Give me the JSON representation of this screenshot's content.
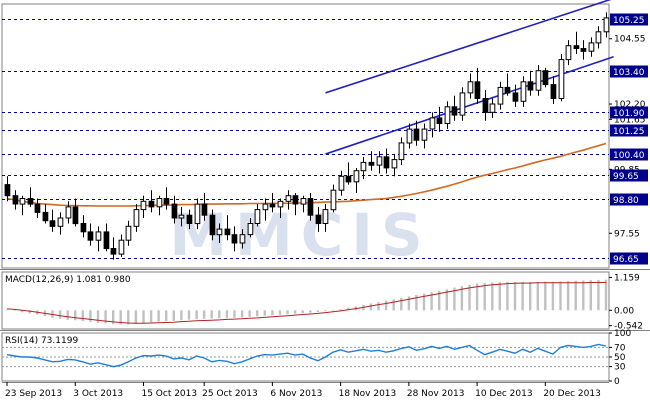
{
  "chart_data": [
    {
      "type": "candlestick",
      "panel": "price",
      "ylim": [
        96.3,
        105.8
      ],
      "y_ticks": [
        {
          "value": "104.55",
          "label": "104.55"
        },
        {
          "value": "102.20",
          "label": "102.20"
        },
        {
          "value": "101.65",
          "label": "101.65"
        },
        {
          "value": "99.85",
          "label": "99.85"
        },
        {
          "value": "97.55",
          "label": "97.55"
        }
      ],
      "levels": [
        {
          "value": 105.25,
          "label": "105.25"
        },
        {
          "value": 103.4,
          "label": "103.40"
        },
        {
          "value": 101.9,
          "label": "101.90"
        },
        {
          "value": 101.25,
          "label": "101.25"
        },
        {
          "value": 100.4,
          "label": "100.40"
        },
        {
          "value": 99.65,
          "label": "99.65"
        },
        {
          "value": 98.8,
          "label": "98.80"
        },
        {
          "value": 96.65,
          "label": "96.65"
        }
      ],
      "ohlc": [
        [
          99.3,
          99.6,
          98.7,
          98.9
        ],
        [
          98.9,
          99.1,
          98.4,
          98.6
        ],
        [
          98.6,
          98.9,
          98.2,
          98.8
        ],
        [
          98.8,
          99.2,
          98.5,
          98.6
        ],
        [
          98.6,
          98.8,
          98.1,
          98.3
        ],
        [
          98.3,
          98.6,
          97.9,
          98.0
        ],
        [
          98.0,
          98.4,
          97.6,
          97.8
        ],
        [
          97.8,
          98.3,
          97.5,
          98.1
        ],
        [
          98.1,
          98.7,
          97.9,
          98.5
        ],
        [
          98.5,
          98.8,
          97.8,
          97.9
        ],
        [
          97.9,
          98.2,
          97.4,
          97.6
        ],
        [
          97.6,
          97.9,
          97.1,
          97.3
        ],
        [
          97.3,
          97.8,
          96.9,
          97.6
        ],
        [
          97.6,
          97.9,
          96.9,
          97.0
        ],
        [
          97.0,
          97.4,
          96.6,
          96.8
        ],
        [
          96.8,
          97.5,
          96.7,
          97.3
        ],
        [
          97.3,
          98.0,
          97.1,
          97.8
        ],
        [
          97.8,
          98.6,
          97.6,
          98.4
        ],
        [
          98.4,
          98.9,
          98.1,
          98.7
        ],
        [
          98.7,
          99.1,
          98.3,
          98.5
        ],
        [
          98.5,
          98.9,
          98.2,
          98.8
        ],
        [
          98.8,
          99.2,
          98.4,
          98.6
        ],
        [
          98.6,
          98.9,
          97.9,
          98.1
        ],
        [
          98.1,
          98.5,
          97.8,
          98.2
        ],
        [
          98.2,
          98.4,
          97.7,
          97.9
        ],
        [
          97.9,
          98.8,
          97.7,
          98.6
        ],
        [
          98.6,
          99.0,
          98.0,
          98.2
        ],
        [
          98.2,
          98.4,
          97.3,
          97.5
        ],
        [
          97.5,
          97.9,
          97.2,
          97.7
        ],
        [
          97.7,
          98.2,
          97.3,
          97.5
        ],
        [
          97.5,
          97.8,
          96.9,
          97.2
        ],
        [
          97.2,
          97.7,
          97.0,
          97.5
        ],
        [
          97.5,
          98.1,
          97.4,
          97.9
        ],
        [
          97.9,
          98.6,
          97.8,
          98.4
        ],
        [
          98.4,
          98.8,
          98.0,
          98.6
        ],
        [
          98.6,
          99.0,
          98.3,
          98.5
        ],
        [
          98.5,
          98.8,
          98.1,
          98.7
        ],
        [
          98.7,
          99.1,
          98.4,
          98.9
        ],
        [
          98.9,
          99.0,
          98.2,
          98.6
        ],
        [
          98.6,
          98.9,
          98.3,
          98.8
        ],
        [
          98.8,
          99.0,
          98.0,
          98.2
        ],
        [
          98.2,
          98.5,
          97.6,
          97.9
        ],
        [
          97.9,
          98.6,
          97.6,
          98.4
        ],
        [
          98.4,
          99.3,
          98.3,
          99.1
        ],
        [
          99.1,
          99.8,
          98.9,
          99.6
        ],
        [
          99.6,
          100.1,
          99.3,
          99.4
        ],
        [
          99.4,
          99.9,
          99.0,
          99.8
        ],
        [
          99.8,
          100.3,
          99.5,
          100.1
        ],
        [
          100.1,
          100.5,
          99.8,
          100.0
        ],
        [
          100.0,
          100.5,
          99.7,
          100.3
        ],
        [
          100.3,
          100.6,
          99.7,
          99.9
        ],
        [
          99.9,
          100.4,
          99.6,
          100.2
        ],
        [
          100.2,
          101.0,
          100.0,
          100.8
        ],
        [
          100.8,
          101.5,
          100.6,
          101.3
        ],
        [
          101.3,
          101.6,
          100.7,
          100.9
        ],
        [
          100.9,
          101.5,
          100.6,
          101.3
        ],
        [
          101.3,
          101.9,
          101.0,
          101.7
        ],
        [
          101.7,
          102.1,
          101.2,
          101.5
        ],
        [
          101.5,
          102.3,
          101.3,
          102.1
        ],
        [
          102.1,
          102.5,
          101.6,
          101.8
        ],
        [
          101.8,
          102.8,
          101.6,
          102.6
        ],
        [
          102.6,
          103.3,
          102.4,
          103.0
        ],
        [
          103.0,
          103.5,
          102.2,
          102.4
        ],
        [
          102.4,
          102.7,
          101.6,
          101.9
        ],
        [
          101.9,
          102.4,
          101.7,
          102.2
        ],
        [
          102.2,
          103.0,
          102.0,
          102.8
        ],
        [
          102.8,
          103.3,
          102.5,
          102.6
        ],
        [
          102.6,
          102.9,
          102.1,
          102.3
        ],
        [
          102.3,
          103.2,
          102.1,
          103.0
        ],
        [
          103.0,
          103.4,
          102.5,
          102.7
        ],
        [
          102.7,
          103.6,
          102.5,
          103.4
        ],
        [
          103.4,
          103.5,
          102.8,
          102.9
        ],
        [
          102.9,
          103.2,
          102.2,
          102.4
        ],
        [
          102.4,
          104.0,
          102.3,
          103.8
        ],
        [
          103.8,
          104.5,
          103.6,
          104.3
        ],
        [
          104.3,
          104.8,
          104.0,
          104.2
        ],
        [
          104.2,
          104.5,
          103.8,
          104.1
        ],
        [
          104.1,
          104.6,
          103.9,
          104.4
        ],
        [
          104.4,
          105.0,
          104.2,
          104.8
        ],
        [
          104.8,
          105.5,
          104.6,
          105.3
        ]
      ],
      "ma": [
        98.8,
        98.75,
        98.7,
        98.66,
        98.62,
        98.6,
        98.58,
        98.56,
        98.55,
        98.55,
        98.54,
        98.54,
        98.53,
        98.53,
        98.53,
        98.53,
        98.53,
        98.54,
        98.55,
        98.55,
        98.56,
        98.56,
        98.57,
        98.58,
        98.58,
        98.59,
        98.6,
        98.6,
        98.6,
        98.61,
        98.61,
        98.61,
        98.62,
        98.62,
        98.62,
        98.63,
        98.63,
        98.63,
        98.64,
        98.64,
        98.65,
        98.66,
        98.67,
        98.68,
        98.69,
        98.7,
        98.72,
        98.74,
        98.76,
        98.78,
        98.8,
        98.84,
        98.88,
        98.93,
        98.98,
        99.04,
        99.1,
        99.17,
        99.24,
        99.32,
        99.4,
        99.49,
        99.57,
        99.64,
        99.7,
        99.77,
        99.84,
        99.9,
        99.97,
        100.05,
        100.12,
        100.19,
        100.25,
        100.32,
        100.4,
        100.47,
        100.54,
        100.62,
        100.7,
        100.78
      ],
      "channel_upper": {
        "from": [
          42,
          102.6
        ],
        "to": [
          80,
          106.0
        ]
      },
      "channel_lower": {
        "from": [
          42,
          100.4
        ],
        "to": [
          80,
          103.9
        ]
      }
    },
    {
      "type": "bar",
      "panel": "macd",
      "label": "MACD(12,26,9) 1.081 0.980",
      "ylim": [
        -0.66,
        1.35
      ],
      "y_ticks": [
        {
          "value": "1.159",
          "label": "1.159"
        },
        {
          "value": "0.00",
          "label": "0.00"
        },
        {
          "value": "-0.542",
          "label": "-0.542"
        }
      ],
      "values": [
        0.02,
        -0.02,
        -0.07,
        -0.11,
        -0.15,
        -0.2,
        -0.26,
        -0.3,
        -0.33,
        -0.35,
        -0.38,
        -0.41,
        -0.44,
        -0.46,
        -0.49,
        -0.5,
        -0.5,
        -0.48,
        -0.45,
        -0.42,
        -0.4,
        -0.38,
        -0.37,
        -0.35,
        -0.33,
        -0.31,
        -0.3,
        -0.29,
        -0.28,
        -0.27,
        -0.26,
        -0.25,
        -0.23,
        -0.21,
        -0.19,
        -0.17,
        -0.16,
        -0.14,
        -0.12,
        -0.1,
        -0.08,
        -0.06,
        -0.03,
        0.0,
        0.04,
        0.09,
        0.14,
        0.19,
        0.24,
        0.29,
        0.34,
        0.39,
        0.44,
        0.49,
        0.54,
        0.59,
        0.64,
        0.69,
        0.74,
        0.8,
        0.85,
        0.9,
        0.94,
        0.96,
        0.98,
        0.99,
        1.0,
        1.0,
        1.0,
        1.0,
        1.0,
        1.01,
        1.01,
        1.02,
        1.03,
        1.04,
        1.05,
        1.06,
        1.07,
        1.08
      ],
      "signal": [
        0.05,
        0.03,
        0.0,
        -0.03,
        -0.07,
        -0.11,
        -0.15,
        -0.19,
        -0.23,
        -0.26,
        -0.29,
        -0.32,
        -0.35,
        -0.38,
        -0.41,
        -0.43,
        -0.45,
        -0.46,
        -0.46,
        -0.45,
        -0.44,
        -0.43,
        -0.42,
        -0.4,
        -0.39,
        -0.37,
        -0.36,
        -0.35,
        -0.34,
        -0.32,
        -0.31,
        -0.3,
        -0.28,
        -0.27,
        -0.25,
        -0.23,
        -0.21,
        -0.19,
        -0.17,
        -0.15,
        -0.13,
        -0.11,
        -0.08,
        -0.05,
        -0.02,
        0.02,
        0.06,
        0.1,
        0.15,
        0.2,
        0.24,
        0.29,
        0.34,
        0.39,
        0.44,
        0.49,
        0.54,
        0.59,
        0.64,
        0.69,
        0.74,
        0.79,
        0.83,
        0.87,
        0.9,
        0.92,
        0.94,
        0.95,
        0.96,
        0.96,
        0.97,
        0.97,
        0.97,
        0.97,
        0.97,
        0.97,
        0.97,
        0.98,
        0.98,
        0.98
      ]
    },
    {
      "type": "line",
      "panel": "rsi",
      "label": "RSI(14) 73.1199",
      "ylim": [
        0,
        100
      ],
      "y_ticks": [
        {
          "value": 100,
          "label": "100"
        },
        {
          "value": 70,
          "label": "70"
        },
        {
          "value": 50,
          "label": "50"
        },
        {
          "value": 30,
          "label": "30"
        },
        {
          "value": 0,
          "label": "0"
        }
      ],
      "values": [
        55,
        52,
        50,
        50,
        48,
        44,
        40,
        41,
        45,
        44,
        40,
        35,
        38,
        34,
        30,
        33,
        40,
        48,
        53,
        52,
        54,
        52,
        46,
        48,
        44,
        52,
        48,
        40,
        43,
        41,
        36,
        40,
        46,
        52,
        55,
        54,
        56,
        58,
        54,
        56,
        48,
        42,
        50,
        60,
        65,
        60,
        63,
        66,
        62,
        64,
        60,
        63,
        68,
        71,
        64,
        67,
        72,
        68,
        72,
        66,
        70,
        74,
        64,
        55,
        60,
        66,
        62,
        58,
        66,
        60,
        68,
        62,
        56,
        70,
        74,
        72,
        70,
        72,
        76,
        73
      ]
    }
  ],
  "x_axis": {
    "labels": [
      {
        "index": 0,
        "label": "23 Sep 2013"
      },
      {
        "index": 9,
        "label": "3 Oct 2013"
      },
      {
        "index": 18,
        "label": "15 Oct 2013"
      },
      {
        "index": 26,
        "label": "25 Oct 2013"
      },
      {
        "index": 35,
        "label": "6 Nov 2013"
      },
      {
        "index": 44,
        "label": "18 Nov 2013"
      },
      {
        "index": 53,
        "label": "28 Nov 2013"
      },
      {
        "index": 62,
        "label": "10 Dec 2013"
      },
      {
        "index": 71,
        "label": "20 Dec 2013"
      }
    ]
  },
  "watermark": "MMCIS",
  "colors": {
    "candle": "#000000",
    "level_line": "#00008b",
    "channel": "#2020c0",
    "ma": "#d2691e",
    "macd_hist": "#c0c0c0",
    "macd_signal": "#b22222",
    "rsi": "#1e7fd8",
    "watermark": "#c9d3e8",
    "label_box": "#00008b"
  }
}
